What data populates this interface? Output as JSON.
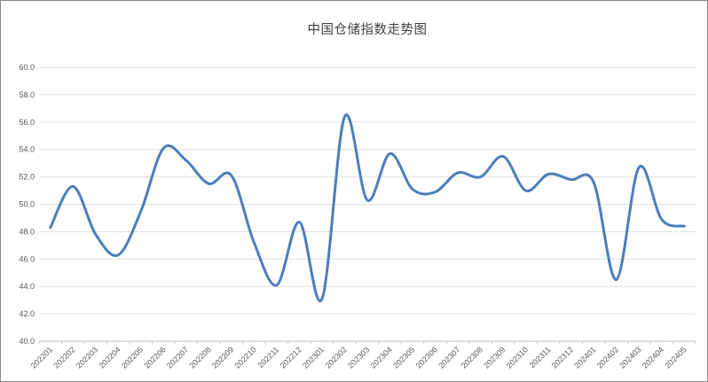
{
  "chart_data": {
    "type": "line",
    "title": "中国仓储指数走势图",
    "categories": [
      "202201",
      "202202",
      "202203",
      "202204",
      "202205",
      "202206",
      "202207",
      "202208",
      "202209",
      "202210",
      "202211",
      "202212",
      "202301",
      "202302",
      "202303",
      "202304",
      "202305",
      "202306",
      "202307",
      "202308",
      "202309",
      "202310",
      "202311",
      "202312",
      "202401",
      "202402",
      "202403",
      "202404",
      "202405"
    ],
    "values": [
      48.3,
      51.3,
      47.8,
      46.3,
      49.5,
      54.1,
      53.2,
      51.5,
      52.1,
      47.2,
      44.1,
      48.7,
      43.1,
      56.4,
      50.3,
      53.7,
      51.1,
      50.9,
      52.3,
      52.0,
      53.5,
      51.0,
      52.2,
      51.8,
      51.6,
      44.5,
      52.7,
      48.9,
      48.4
    ],
    "xlabel": "",
    "ylabel": "",
    "ylim": [
      40.0,
      60.0
    ],
    "ytick_step": 2.0,
    "ytick_labels": [
      "40.0",
      "42.0",
      "44.0",
      "46.0",
      "48.0",
      "50.0",
      "52.0",
      "54.0",
      "56.0",
      "58.0",
      "60.0"
    ],
    "grid": "horizontal",
    "legend": "none",
    "smooth": true,
    "colors": {
      "line": "#4A7EBB",
      "gridline": "#E0E0E0",
      "axis": "#BFBFBF",
      "tick_label": "#595959",
      "title": "#3F3F3F",
      "frame_border": "#8A8A8A",
      "background": "#FFFFFF"
    }
  }
}
